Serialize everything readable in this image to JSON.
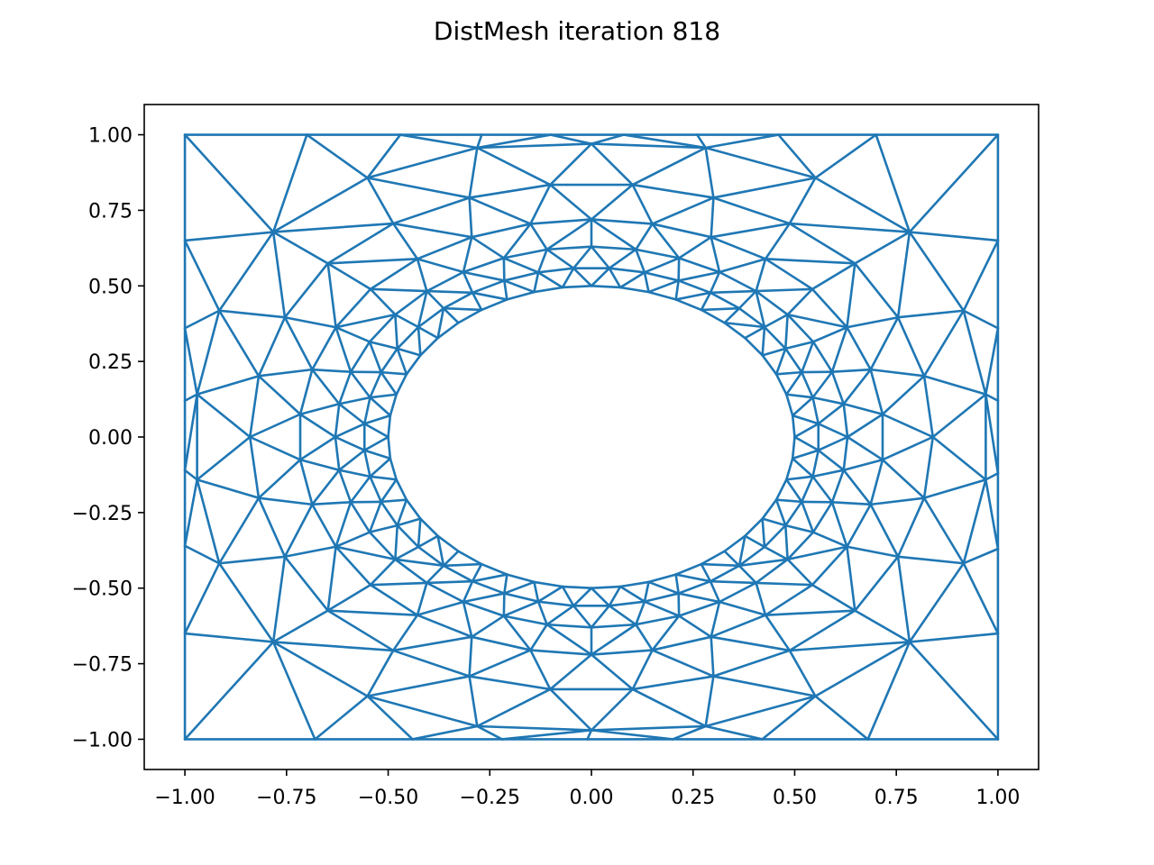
{
  "chart_data": {
    "type": "mesh",
    "title": "DistMesh iteration 818",
    "xlabel": "",
    "ylabel": "",
    "xlim": [
      -1.1,
      1.1
    ],
    "ylim": [
      -1.1,
      1.1
    ],
    "grid": false,
    "line_color": "#1f77b4",
    "xticks": [
      -1.0,
      -0.75,
      -0.5,
      -0.25,
      0.0,
      0.25,
      0.5,
      0.75,
      1.0
    ],
    "xtick_labels": [
      "−1.00",
      "−0.75",
      "−0.50",
      "−0.25",
      "0.00",
      "0.25",
      "0.50",
      "0.75",
      "1.00"
    ],
    "yticks": [
      1.0,
      0.75,
      0.5,
      0.25,
      0.0,
      -0.25,
      -0.5,
      -0.75,
      -1.0
    ],
    "ytick_labels": [
      "1.00",
      "0.75",
      "0.50",
      "0.25",
      "0.00",
      "−0.25",
      "−0.50",
      "−0.75",
      "−1.00"
    ],
    "domain": {
      "outer_rectangle": {
        "xmin": -1.0,
        "xmax": 1.0,
        "ymin": -1.0,
        "ymax": 1.0
      },
      "inner_hole": {
        "shape": "ellipse",
        "cx": 0.0,
        "cy": 0.0,
        "rx": 0.5,
        "ry": 0.5
      }
    },
    "mesh_rings": [
      {
        "x": [
          -1.0,
          -0.7,
          -0.47,
          -0.27,
          -0.1,
          0.08,
          0.26,
          0.46,
          0.7,
          1.0
        ],
        "y": [
          1.0,
          1.0,
          1.0,
          1.0,
          1.0,
          1.0,
          1.0,
          1.0,
          1.0,
          1.0
        ]
      },
      {
        "x": [
          -1.0,
          -0.68,
          -0.44,
          -0.22,
          -0.01,
          0.2,
          0.42,
          0.68,
          1.0
        ],
        "y": [
          -1.0,
          -1.0,
          -1.0,
          -1.0,
          -1.0,
          -1.0,
          -1.0,
          -1.0,
          -1.0
        ]
      },
      {
        "x": [
          -1.0,
          -1.0,
          -1.0,
          -1.0,
          -1.0,
          -1.0,
          -1.0
        ],
        "y": [
          0.65,
          0.36,
          0.12,
          -0.11,
          -0.36,
          -0.65,
          0.0
        ]
      },
      {
        "x": [
          1.0,
          1.0,
          1.0,
          1.0,
          1.0,
          1.0
        ],
        "y": [
          0.65,
          0.36,
          0.12,
          -0.12,
          -0.37,
          -0.65
        ]
      },
      {
        "x": [
          -0.77,
          -0.54,
          -0.36,
          -0.18,
          -0.02,
          0.15,
          0.33,
          0.55,
          0.78,
          -0.82,
          -0.84,
          -0.83,
          -0.82,
          -0.77,
          -0.53,
          -0.32,
          -0.13,
          0.05,
          0.21,
          0.41,
          0.61,
          0.8,
          0.86,
          0.84,
          0.84,
          0.83
        ],
        "y": [
          0.75,
          0.76,
          0.81,
          0.82,
          0.82,
          0.82,
          0.81,
          0.79,
          0.76,
          0.5,
          0.19,
          0.0,
          -0.18,
          -0.75,
          -0.78,
          -0.81,
          -0.83,
          -0.83,
          -0.81,
          -0.79,
          -0.78,
          -0.76,
          0.33,
          0.19,
          -0.2,
          -0.51
        ]
      },
      {
        "x": [
          0.0,
          0.12,
          0.24,
          0.34,
          0.41,
          0.46,
          0.49,
          0.5,
          0.49,
          0.46,
          0.41,
          0.34,
          0.24,
          0.12,
          0.0,
          -0.12,
          -0.24,
          -0.34,
          -0.41,
          -0.46,
          -0.49,
          -0.5,
          -0.49,
          -0.46,
          -0.41,
          -0.34,
          -0.24,
          -0.12
        ],
        "y": [
          0.5,
          0.48,
          0.44,
          0.37,
          0.29,
          0.2,
          0.1,
          0.0,
          -0.1,
          -0.2,
          -0.29,
          -0.37,
          -0.44,
          -0.48,
          -0.5,
          -0.48,
          -0.44,
          -0.37,
          -0.29,
          -0.2,
          -0.1,
          0.0,
          0.1,
          0.2,
          0.29,
          0.37,
          0.44,
          0.48
        ]
      }
    ]
  }
}
